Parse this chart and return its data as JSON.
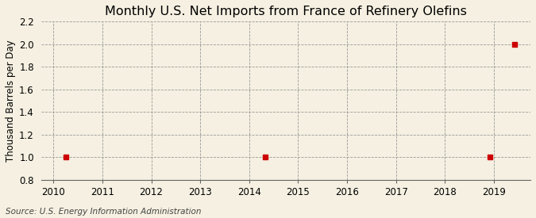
{
  "title": "Monthly U.S. Net Imports from France of Refinery Olefins",
  "ylabel": "Thousand Barrels per Day",
  "source": "Source: U.S. Energy Information Administration",
  "background_color": "#f5f0e1",
  "plot_bg_color": "#f5f0e1",
  "data_x": [
    2010.25,
    2014.33,
    2018.92,
    2019.42
  ],
  "data_y": [
    1.0,
    1.0,
    1.0,
    2.0
  ],
  "marker_color": "#cc0000",
  "marker": "s",
  "marker_size": 4,
  "xlim": [
    2009.75,
    2019.75
  ],
  "ylim": [
    0.8,
    2.2
  ],
  "yticks": [
    0.8,
    1.0,
    1.2,
    1.4,
    1.6,
    1.8,
    2.0,
    2.2
  ],
  "xticks": [
    2010,
    2011,
    2012,
    2013,
    2014,
    2015,
    2016,
    2017,
    2018,
    2019
  ],
  "title_fontsize": 11.5,
  "axis_fontsize": 8.5,
  "source_fontsize": 7.5,
  "grid_color": "#999999",
  "grid_linestyle": "--",
  "grid_linewidth": 0.6,
  "spine_color": "#666666"
}
